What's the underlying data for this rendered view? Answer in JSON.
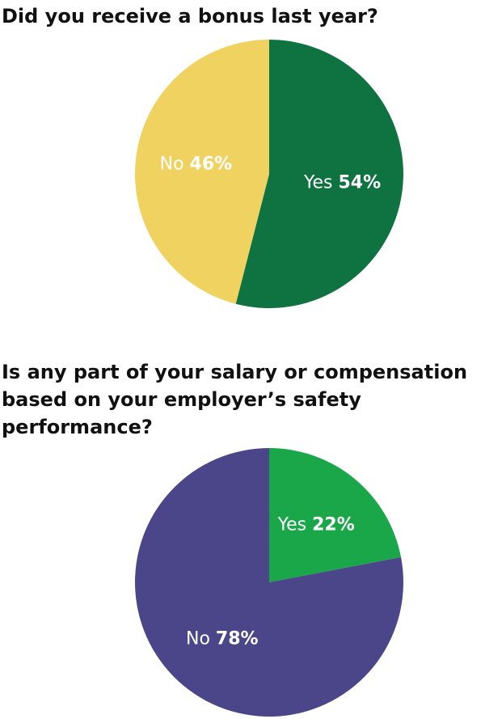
{
  "chart_data": [
    {
      "type": "pie",
      "title": "Did you receive a bonus last year?",
      "categories": [
        "Yes",
        "No"
      ],
      "values": [
        54,
        46
      ],
      "value_labels": [
        "54%",
        "46%"
      ],
      "colors": [
        "#0e7340",
        "#f0d260"
      ]
    },
    {
      "type": "pie",
      "title": "Is any part of your salary or compensation based on your employer’s safety performance?",
      "categories": [
        "Yes",
        "No"
      ],
      "values": [
        22,
        78
      ],
      "value_labels": [
        "22%",
        "78%"
      ],
      "colors": [
        "#1aa74a",
        "#4b4589"
      ]
    }
  ]
}
